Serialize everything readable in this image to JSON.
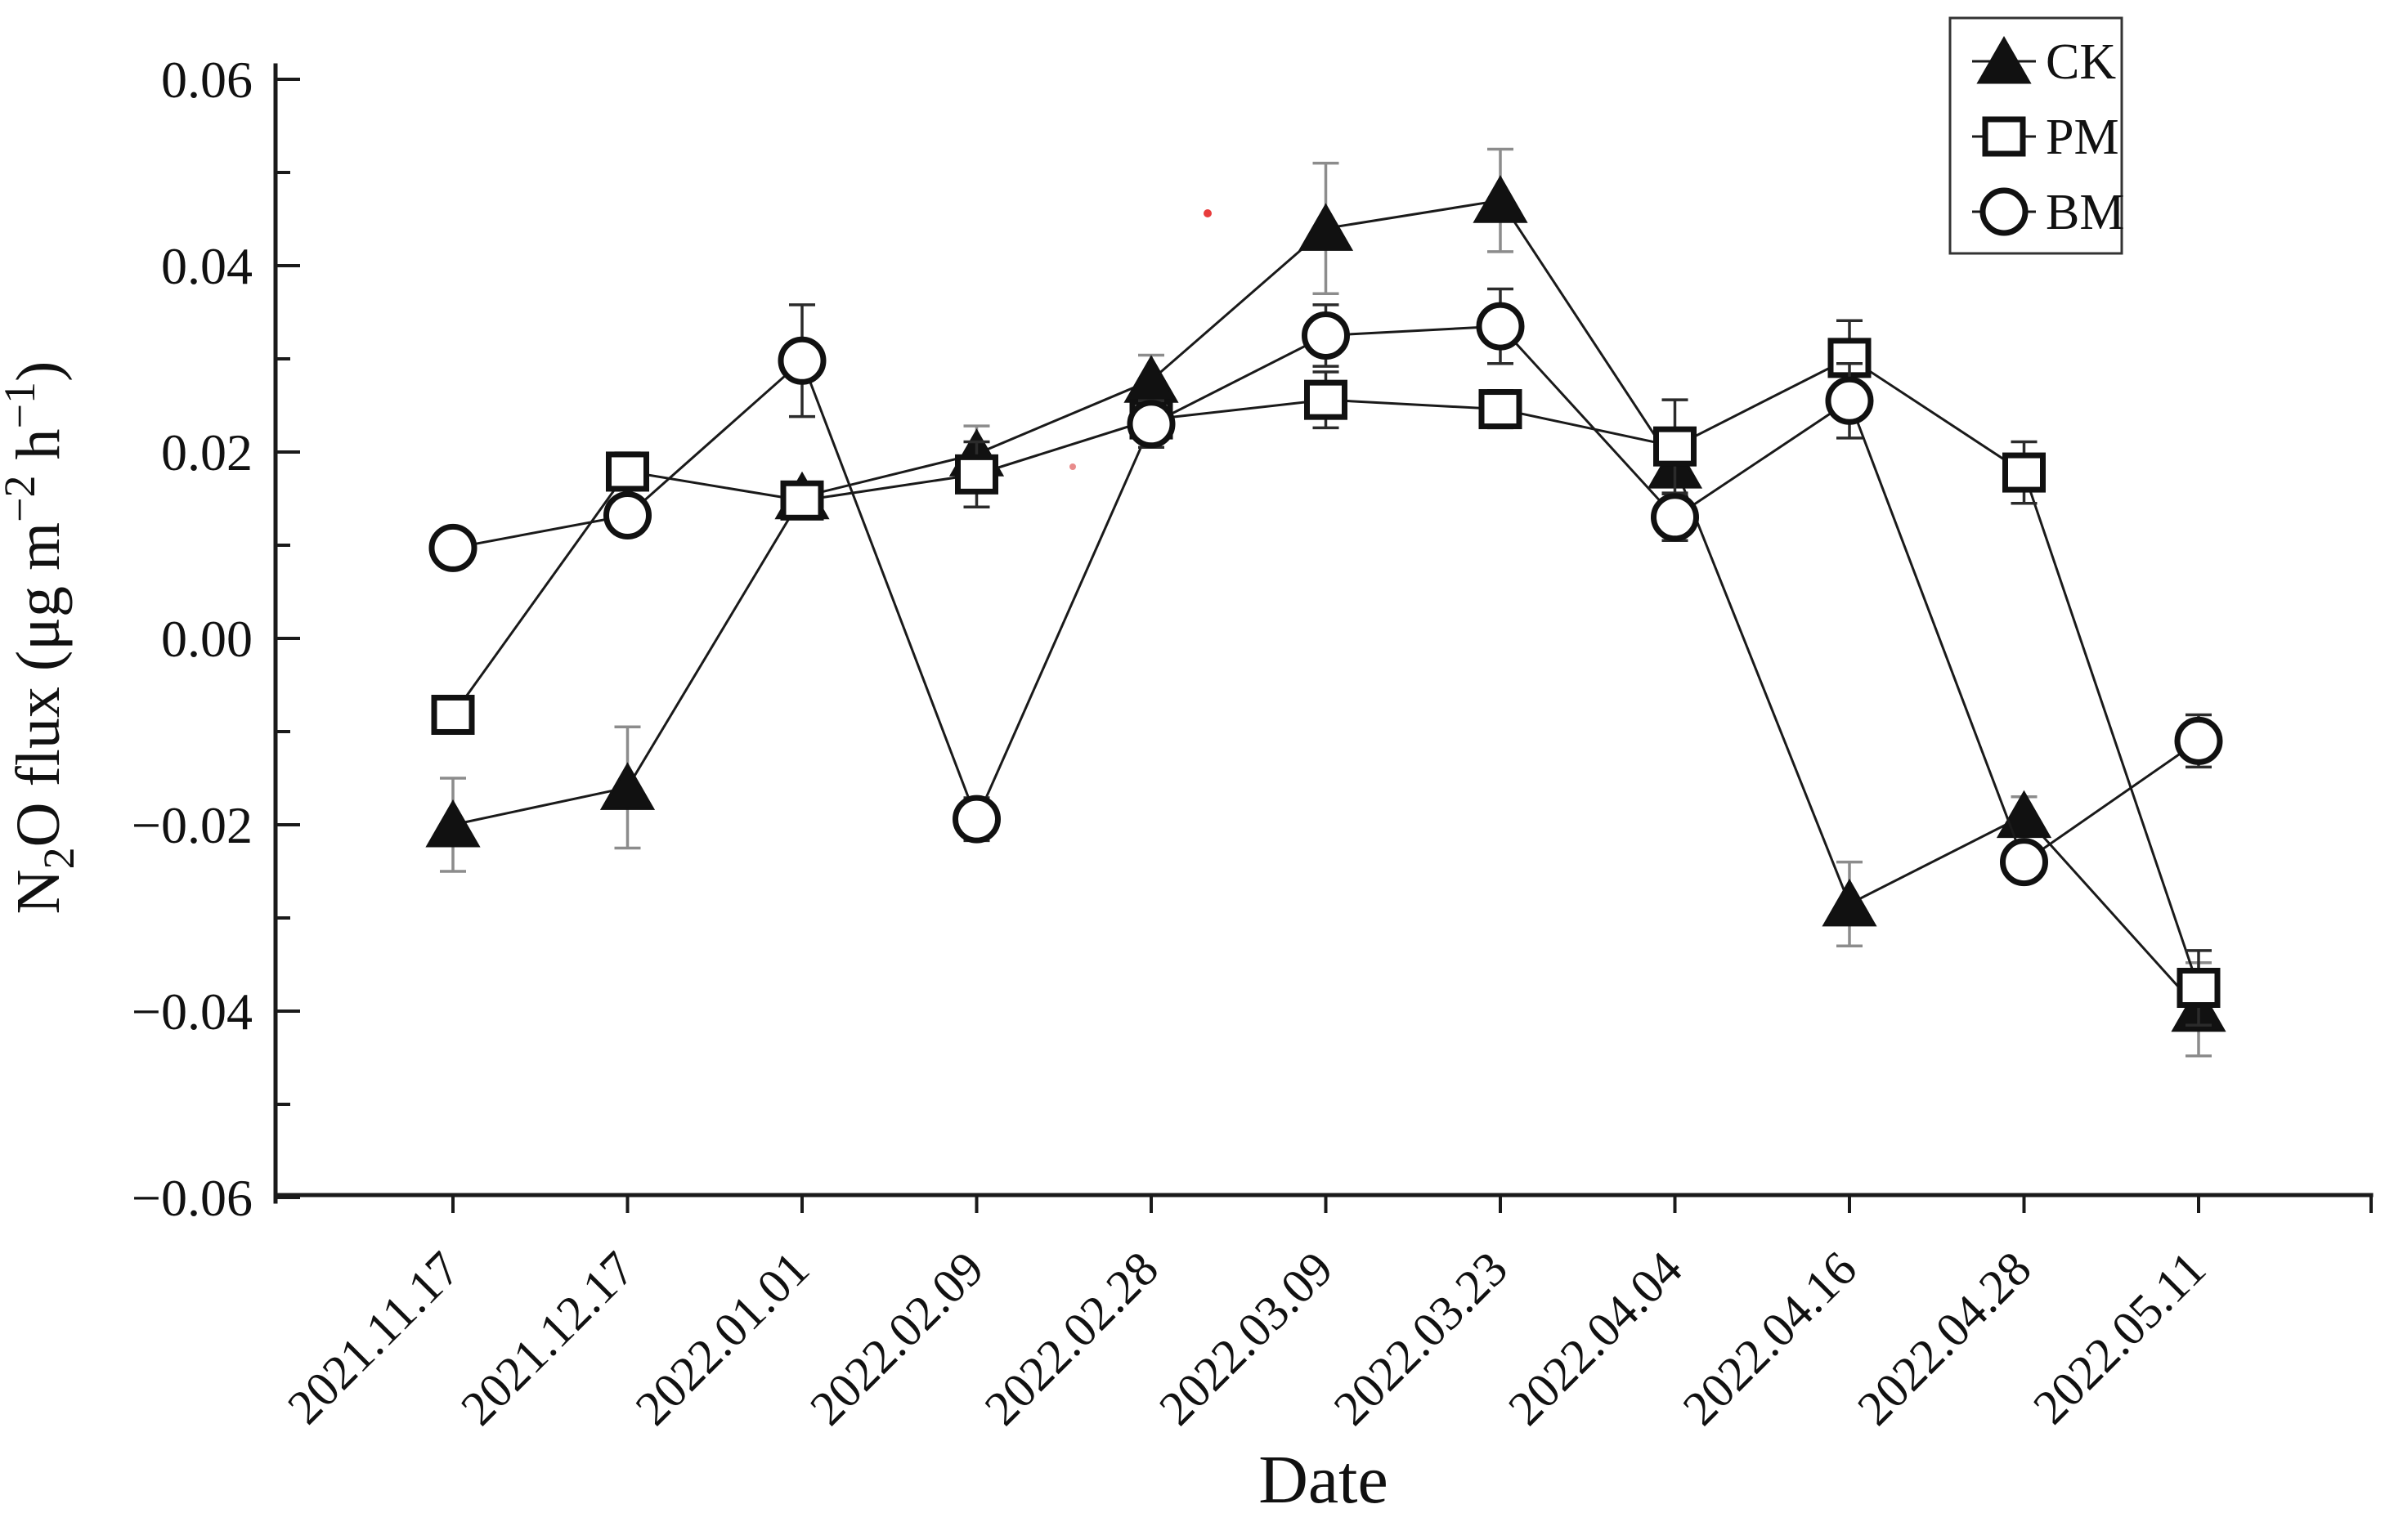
{
  "chart_data": {
    "type": "line",
    "title": "",
    "xlabel": "Date",
    "ylabel": "N2O flux (μg m-2 h-1)",
    "ylabel_parts": [
      {
        "t": "N",
        "pos": "base"
      },
      {
        "t": "2",
        "pos": "sub"
      },
      {
        "t": "O flux (μg m",
        "pos": "base"
      },
      {
        "t": "−2",
        "pos": "sup"
      },
      {
        "t": " h",
        "pos": "base"
      },
      {
        "t": "−1",
        "pos": "sup"
      },
      {
        "t": ")",
        "pos": "base"
      }
    ],
    "categories": [
      "2021.11.17",
      "2021.12.17",
      "2022.01.01",
      "2022.02.09",
      "2022.02.28",
      "2022.03.09",
      "2022.03.23",
      "2022.04.04",
      "2022.04.16",
      "2022.04.28",
      "2022.05.11"
    ],
    "series": [
      {
        "name": "CK",
        "marker": "triangle-filled",
        "values": [
          -0.02,
          -0.016,
          0.0152,
          0.0198,
          0.0277,
          0.044,
          0.047,
          0.0185,
          -0.0285,
          -0.019,
          -0.0398
        ],
        "errors": [
          0.005,
          0.0065,
          0.0015,
          0.003,
          0.0027,
          0.007,
          0.0055,
          0.002,
          0.0045,
          0.002,
          0.005
        ],
        "line_color": "#1a1a1a",
        "marker_fill": "#111111",
        "error_color": "#8c8c8c"
      },
      {
        "name": "PM",
        "marker": "square-open",
        "values": [
          -0.0082,
          0.0179,
          0.0148,
          0.0176,
          0.0235,
          0.0256,
          0.0246,
          0.0206,
          0.0301,
          0.0178,
          -0.0375
        ],
        "errors": [
          0.0015,
          0.002,
          0.0015,
          0.0035,
          0.002,
          0.003,
          0.002,
          0.005,
          0.004,
          0.0033,
          0.004
        ],
        "line_color": "#1a1a1a",
        "marker_fill": "#ffffff",
        "error_color": "#2b2b2b"
      },
      {
        "name": "BM",
        "marker": "circle-open",
        "values": [
          0.0097,
          0.0132,
          0.0298,
          -0.0194,
          0.023,
          0.0325,
          0.0335,
          0.013,
          0.0255,
          -0.024,
          -0.011
        ],
        "errors": [
          0.002,
          0.002,
          0.006,
          0.0023,
          0.0025,
          0.0033,
          0.004,
          0.0025,
          0.004,
          0.002,
          0.0028
        ],
        "line_color": "#1a1a1a",
        "marker_fill": "#ffffff",
        "error_color": "#2b2b2b"
      }
    ],
    "ylim": [
      -0.06,
      0.06
    ],
    "ytick_step": 0.02,
    "yminor_step": 0.01,
    "ytick_labels": [
      "0.06",
      "0.04",
      "0.02",
      "0.00",
      "−0.02",
      "−0.04",
      "−0.06"
    ],
    "grid": false,
    "legend": {
      "position": "top-right",
      "entries": [
        "CK",
        "PM",
        "BM"
      ]
    },
    "axis_color": "#1a1a1a",
    "background": "#ffffff",
    "artifacts": [
      {
        "x": 1477,
        "y": 261,
        "r": 5,
        "color": "#e83c3c"
      },
      {
        "x": 1312,
        "y": 571,
        "r": 4,
        "color": "#e88b8b"
      }
    ]
  }
}
